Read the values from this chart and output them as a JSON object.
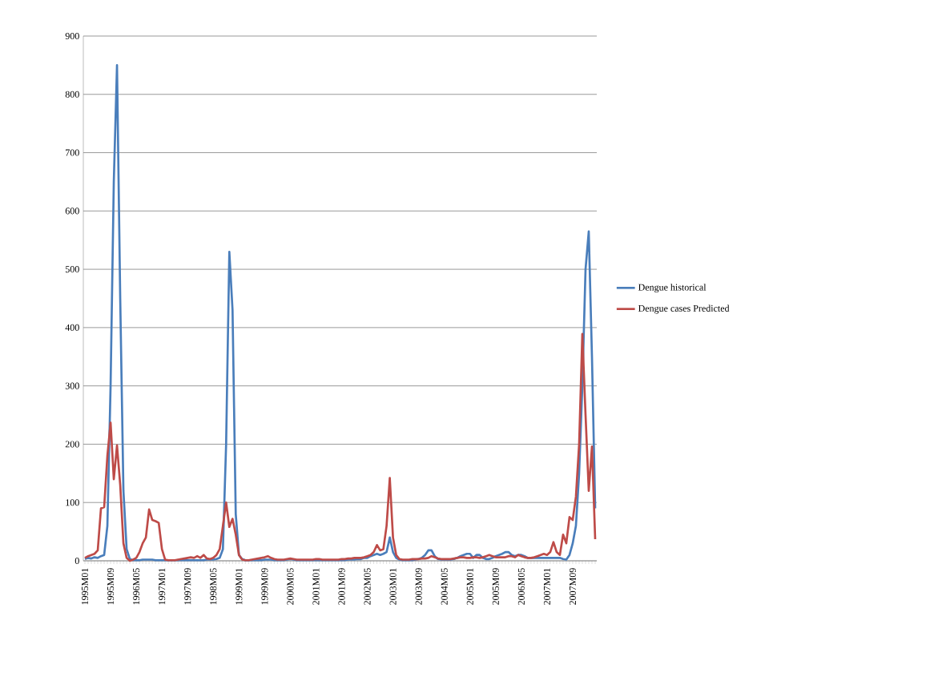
{
  "chart_data": {
    "type": "line",
    "categories": [
      "1995M01",
      null,
      null,
      null,
      null,
      null,
      null,
      null,
      "1995M09",
      null,
      null,
      null,
      null,
      null,
      null,
      null,
      "1996M05",
      null,
      null,
      null,
      null,
      null,
      null,
      null,
      "1997M01",
      null,
      null,
      null,
      null,
      null,
      null,
      null,
      "1997M09",
      null,
      null,
      null,
      null,
      null,
      null,
      null,
      "1998M05",
      null,
      null,
      null,
      null,
      null,
      null,
      null,
      "1999M01",
      null,
      null,
      null,
      null,
      null,
      null,
      null,
      "1999M09",
      null,
      null,
      null,
      null,
      null,
      null,
      null,
      "2000M05",
      null,
      null,
      null,
      null,
      null,
      null,
      null,
      "2001M01",
      null,
      null,
      null,
      null,
      null,
      null,
      null,
      "2001M09",
      null,
      null,
      null,
      null,
      null,
      null,
      null,
      "2002M05",
      null,
      null,
      null,
      null,
      null,
      null,
      null,
      "2003M01",
      null,
      null,
      null,
      null,
      null,
      null,
      null,
      "2003M09",
      null,
      null,
      null,
      null,
      null,
      null,
      null,
      "2004M05",
      null,
      null,
      null,
      null,
      null,
      null,
      null,
      "2005M01",
      null,
      null,
      null,
      null,
      null,
      null,
      null,
      "2005M09",
      null,
      null,
      null,
      null,
      null,
      null,
      null,
      "2006M05",
      null,
      null,
      null,
      null,
      null,
      null,
      null,
      "2007M01",
      null,
      null,
      null,
      null,
      null,
      null,
      null,
      "2007M09",
      null,
      null,
      null,
      null,
      null,
      null,
      null
    ],
    "series": [
      {
        "name": "Dengue historical",
        "color": "#4a7ebb",
        "values": [
          3,
          5,
          4,
          6,
          5,
          8,
          10,
          60,
          300,
          650,
          850,
          450,
          120,
          20,
          3,
          1,
          1,
          1,
          2,
          2,
          2,
          2,
          1,
          1,
          1,
          1,
          1,
          1,
          1,
          1,
          1,
          1,
          1,
          1,
          1,
          1,
          1,
          1,
          2,
          2,
          2,
          3,
          5,
          20,
          200,
          530,
          430,
          80,
          10,
          3,
          1,
          1,
          1,
          1,
          1,
          1,
          2,
          2,
          2,
          1,
          1,
          1,
          1,
          2,
          3,
          2,
          1,
          1,
          1,
          1,
          1,
          1,
          1,
          1,
          1,
          1,
          1,
          1,
          1,
          1,
          1,
          1,
          2,
          2,
          2,
          3,
          3,
          5,
          5,
          8,
          10,
          12,
          10,
          12,
          15,
          40,
          15,
          5,
          2,
          1,
          1,
          1,
          1,
          2,
          3,
          5,
          10,
          18,
          18,
          8,
          3,
          2,
          2,
          2,
          2,
          3,
          5,
          8,
          10,
          12,
          12,
          5,
          10,
          10,
          5,
          3,
          3,
          5,
          8,
          10,
          12,
          15,
          15,
          10,
          8,
          10,
          10,
          8,
          5,
          5,
          5,
          5,
          5,
          5,
          5,
          5,
          5,
          5,
          5,
          3,
          2,
          10,
          30,
          60,
          150,
          300,
          500,
          565,
          350,
          90
        ]
      },
      {
        "name": "Dengue cases Predicted",
        "color": "#be4b48",
        "values": [
          5,
          8,
          10,
          12,
          18,
          90,
          92,
          180,
          237,
          140,
          198,
          130,
          30,
          5,
          0,
          2,
          5,
          15,
          30,
          40,
          88,
          70,
          68,
          65,
          20,
          2,
          1,
          1,
          1,
          2,
          3,
          4,
          5,
          6,
          5,
          8,
          5,
          10,
          4,
          3,
          5,
          10,
          20,
          60,
          100,
          58,
          72,
          45,
          10,
          2,
          1,
          1,
          2,
          3,
          4,
          5,
          6,
          8,
          5,
          3,
          2,
          2,
          2,
          3,
          4,
          3,
          2,
          2,
          2,
          2,
          2,
          2,
          3,
          3,
          2,
          2,
          2,
          2,
          2,
          2,
          3,
          3,
          4,
          4,
          5,
          5,
          5,
          6,
          8,
          10,
          15,
          27,
          18,
          20,
          60,
          142,
          40,
          10,
          3,
          2,
          2,
          2,
          3,
          3,
          3,
          4,
          4,
          5,
          8,
          6,
          4,
          3,
          3,
          3,
          3,
          4,
          5,
          6,
          6,
          5,
          5,
          6,
          6,
          5,
          6,
          8,
          10,
          8,
          6,
          6,
          6,
          6,
          8,
          8,
          6,
          10,
          8,
          6,
          5,
          5,
          6,
          8,
          10,
          12,
          10,
          15,
          32,
          15,
          10,
          45,
          30,
          75,
          70,
          110,
          200,
          389,
          250,
          120,
          196,
          37
        ]
      }
    ],
    "ylim": [
      0,
      900
    ],
    "yticks": [
      0,
      100,
      200,
      300,
      400,
      500,
      600,
      700,
      800,
      900
    ],
    "grid": "y",
    "legend": "right",
    "line_style": "solid",
    "marker": "none"
  }
}
